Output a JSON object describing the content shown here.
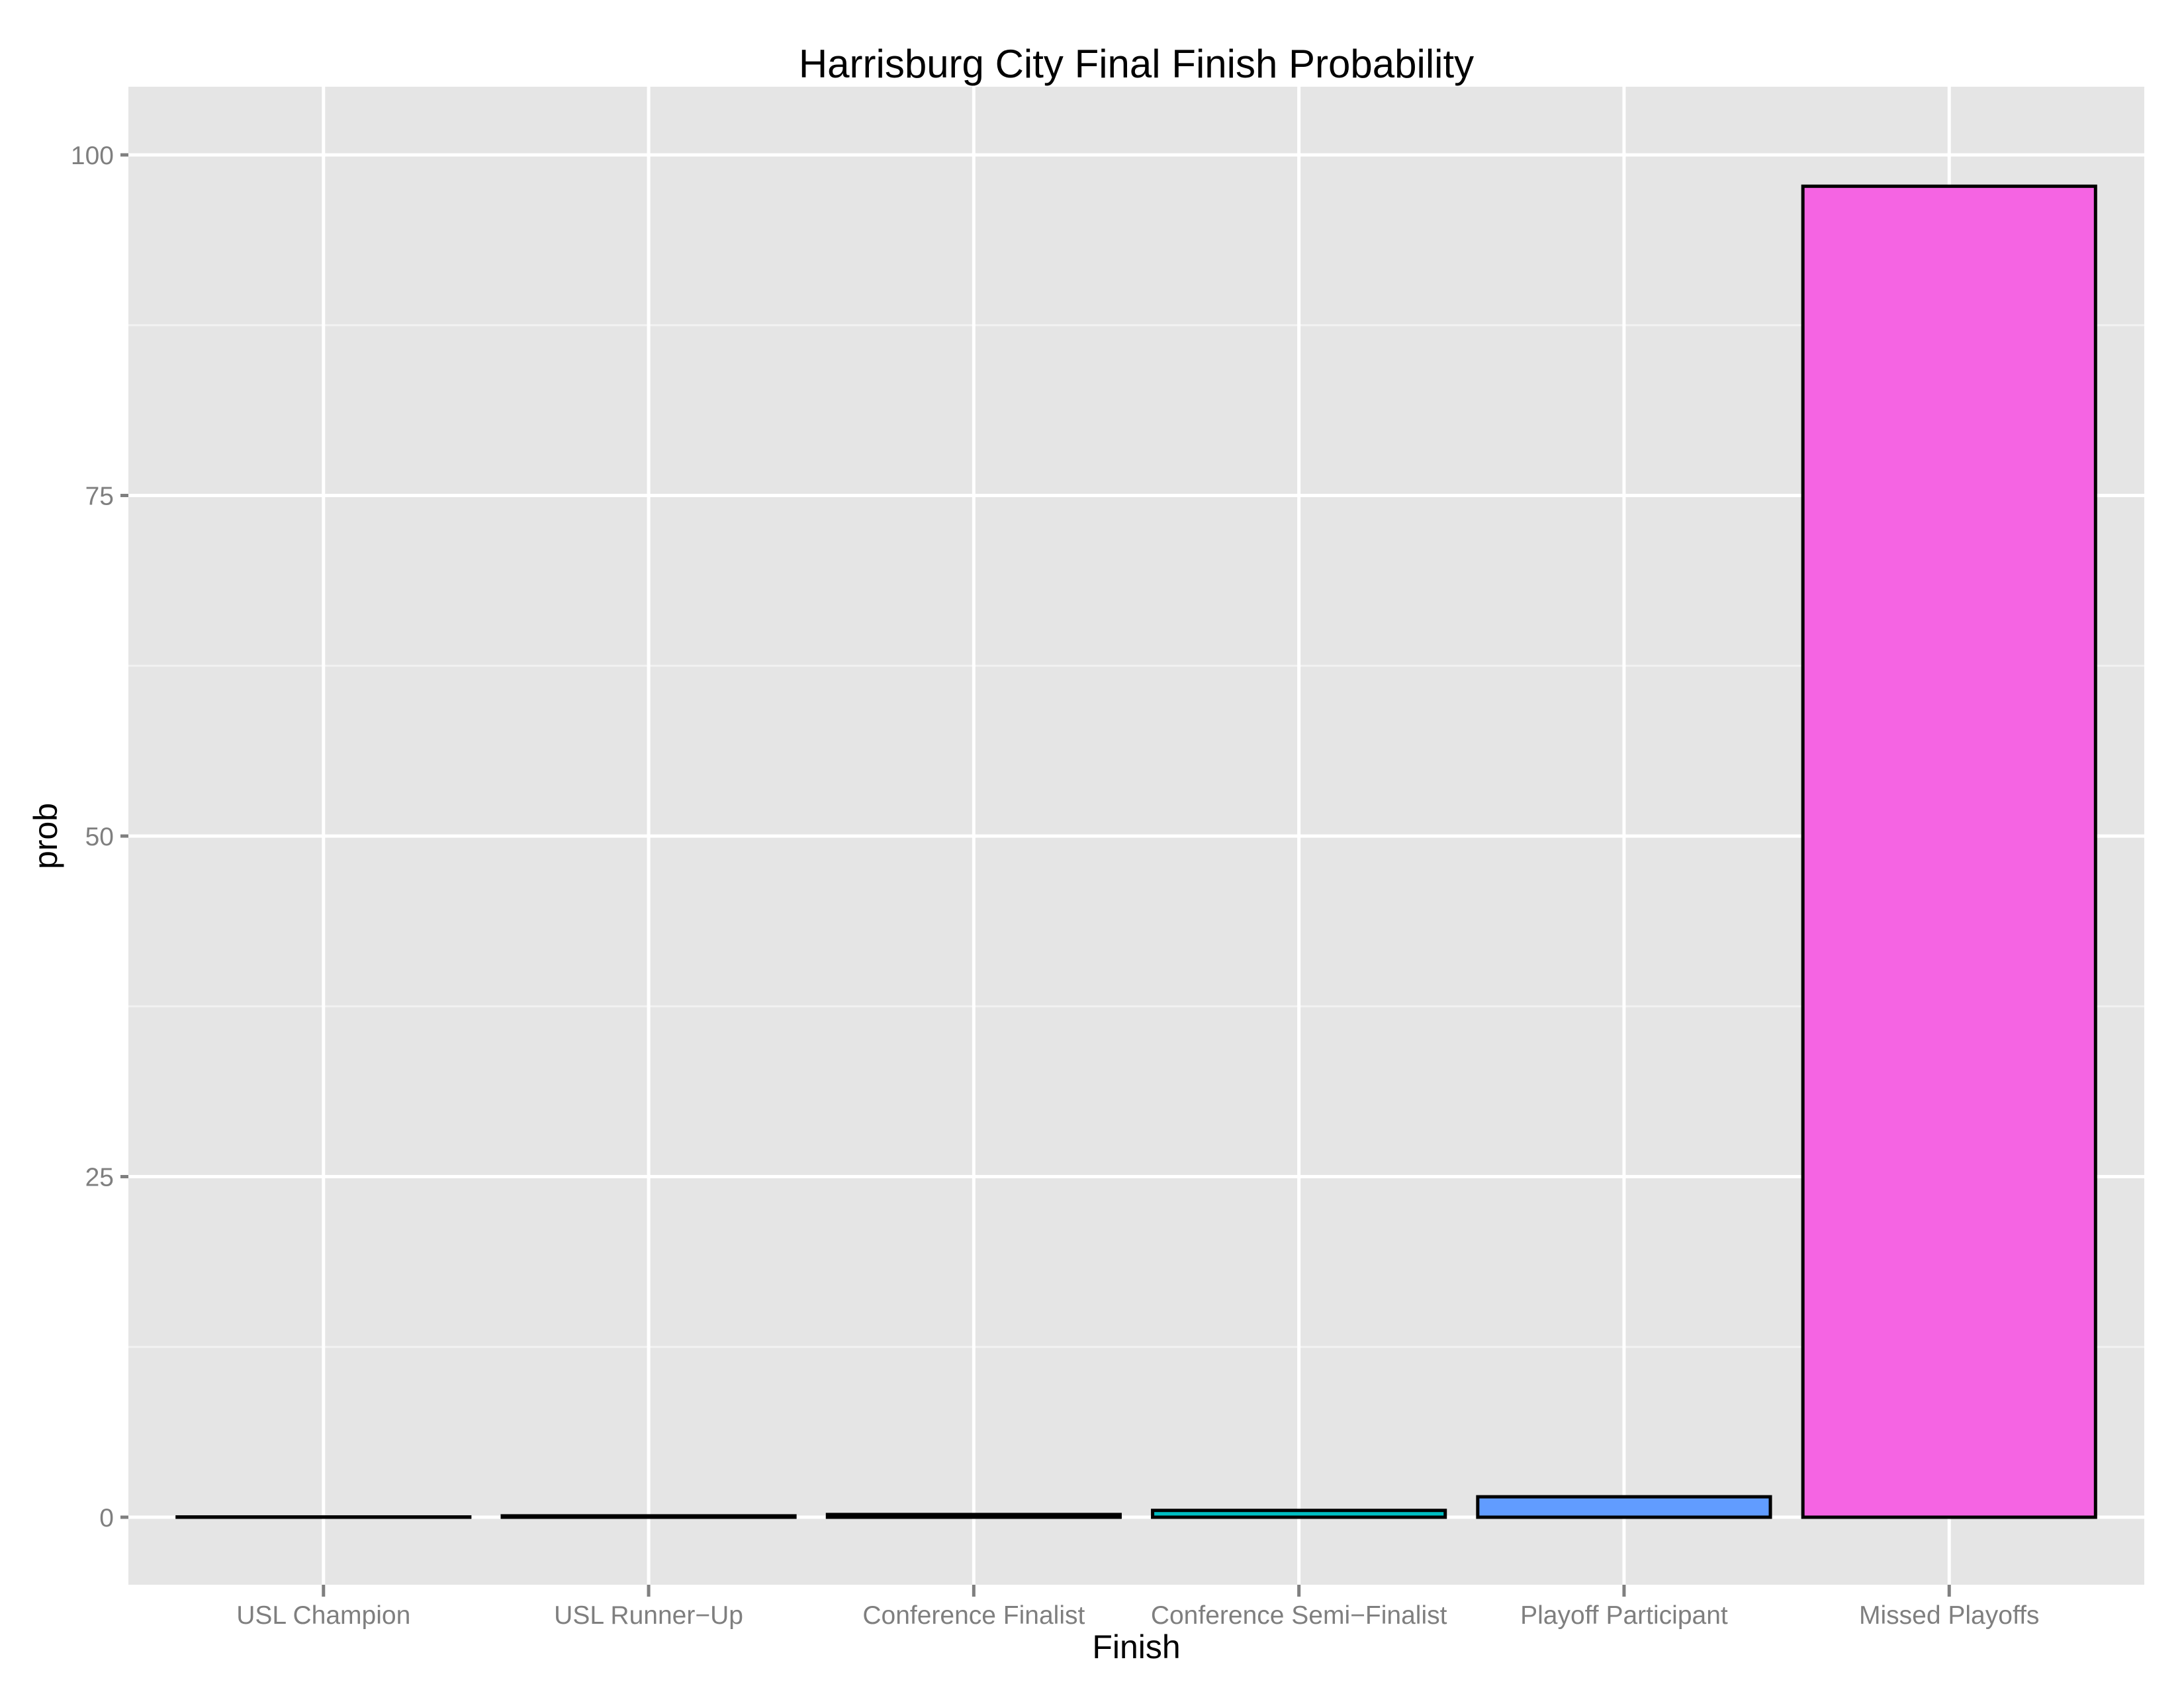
{
  "chart_data": {
    "type": "bar",
    "title": "Harrisburg City Final Finish Probability",
    "xlabel": "Finish",
    "ylabel": "prob",
    "categories": [
      "USL Champion",
      "USL Runner−Up",
      "Conference Finalist",
      "Conference Semi−Finalist",
      "Playoff Participant",
      "Missed Playoffs"
    ],
    "values": [
      0.02,
      0.1,
      0.2,
      0.5,
      1.5,
      97.7
    ],
    "colors": [
      "#F8766D",
      "#B79F00",
      "#00BA38",
      "#00BFC4",
      "#619CFF",
      "#F564E3"
    ],
    "yticks": [
      0,
      25,
      50,
      75,
      100
    ],
    "ytick_labels": [
      "0",
      "25",
      "50",
      "75",
      "100"
    ],
    "ylim": [
      -4.9,
      105.1
    ],
    "grid": true,
    "legend": "none",
    "bar_outline_color": "#000000"
  },
  "style": {
    "panel_background": "#E5E5E5",
    "major_grid_color": "#FFFFFF",
    "minor_grid_color": "#F2F2F2",
    "tick_color": "#7F7F7F"
  }
}
